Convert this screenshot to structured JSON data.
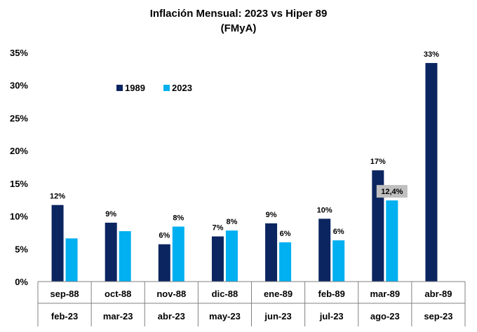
{
  "chart_data": {
    "type": "bar",
    "title": "Inflación Mensual: 2023 vs Hiper 89",
    "subtitle": "(FMyA)",
    "categories_top": [
      "sep-88",
      "oct-88",
      "nov-88",
      "dic-88",
      "ene-89",
      "feb-89",
      "mar-89",
      "abr-89"
    ],
    "categories_bottom": [
      "feb-23",
      "mar-23",
      "abr-23",
      "may-23",
      "jun-23",
      "jul-23",
      "ago-23",
      "sep-23"
    ],
    "y_ticks": [
      "0%",
      "5%",
      "10%",
      "15%",
      "20%",
      "25%",
      "30%",
      "35%"
    ],
    "ylim": [
      0,
      35
    ],
    "series": [
      {
        "name": "1989",
        "color": "#0b2560",
        "values": [
          11.7,
          9.0,
          5.7,
          6.9,
          8.9,
          9.6,
          17.0,
          33.4
        ],
        "labels": [
          "12%",
          "9%",
          "6%",
          "7%",
          "9%",
          "10%",
          "17%",
          "33%"
        ]
      },
      {
        "name": "2023",
        "color": "#00b0f0",
        "values": [
          6.6,
          7.7,
          8.4,
          7.8,
          6.0,
          6.3,
          12.4,
          null
        ],
        "labels": [
          "",
          "",
          "8%",
          "8%",
          "6%",
          "6%",
          "12,4%",
          ""
        ]
      }
    ],
    "highlight_label": {
      "series": 1,
      "index": 6,
      "background": "#bfbfbf"
    },
    "legend_position": "top-left",
    "grid": false
  }
}
